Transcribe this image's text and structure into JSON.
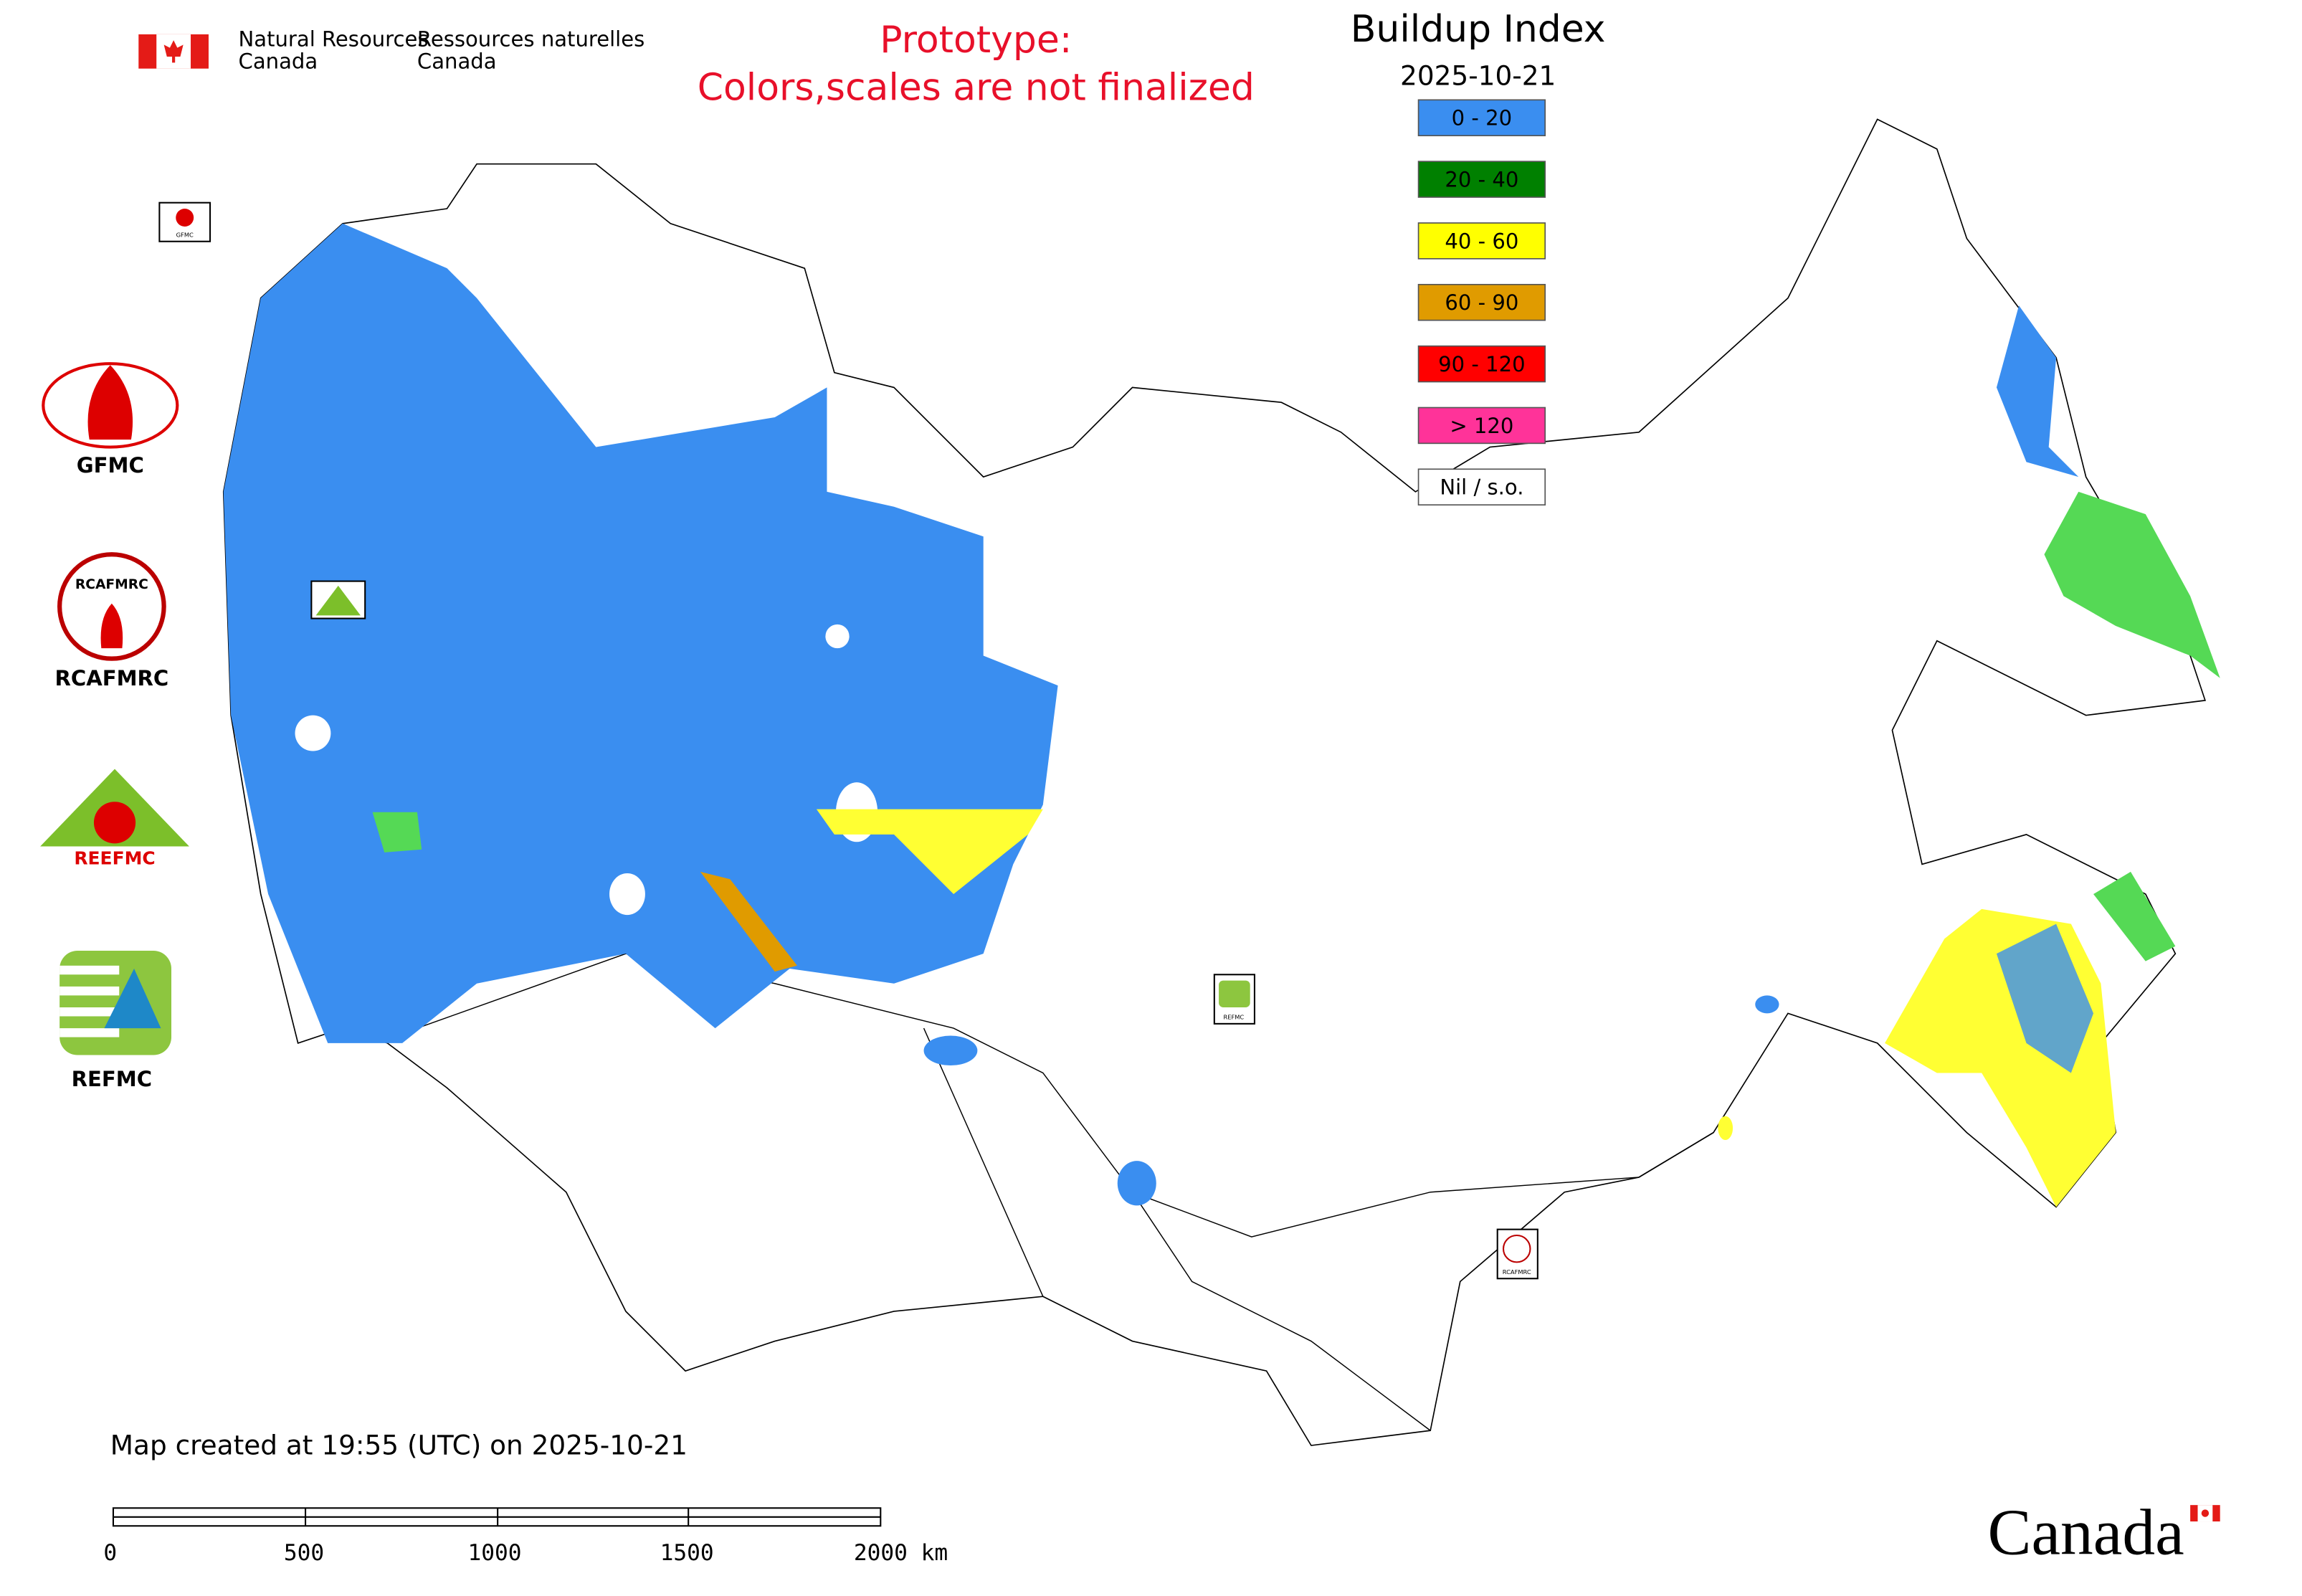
{
  "header": {
    "department_en": [
      "Natural Resources",
      "Canada"
    ],
    "department_fr": [
      "Ressources naturelles",
      "Canada"
    ]
  },
  "notice": [
    "Prototype:",
    "Colors,scales are not finalized"
  ],
  "title": "Buildup Index",
  "date": "2025-10-21",
  "legend": [
    {
      "label": "0 - 20",
      "color": "#3a8ef0"
    },
    {
      "label": "20 - 40",
      "color": "#008000"
    },
    {
      "label": "40 - 60",
      "color": "#ffff00"
    },
    {
      "label": "60 - 90",
      "color": "#e09b00"
    },
    {
      "label": "90 - 120",
      "color": "#ff0000"
    },
    {
      "label": "> 120",
      "color": "#ff3399"
    },
    {
      "label": "Nil / s.o.",
      "color": "#ffffff"
    }
  ],
  "logos": [
    "GFMC",
    "RCAFMRC",
    "REEFMC",
    "REFMC"
  ],
  "footer": "Map created at 19:55 (UTC) on 2025-10-21",
  "scale_bar": [
    "0",
    "500",
    "1000",
    "1500",
    "2000 km"
  ],
  "wordmark": "Canada"
}
